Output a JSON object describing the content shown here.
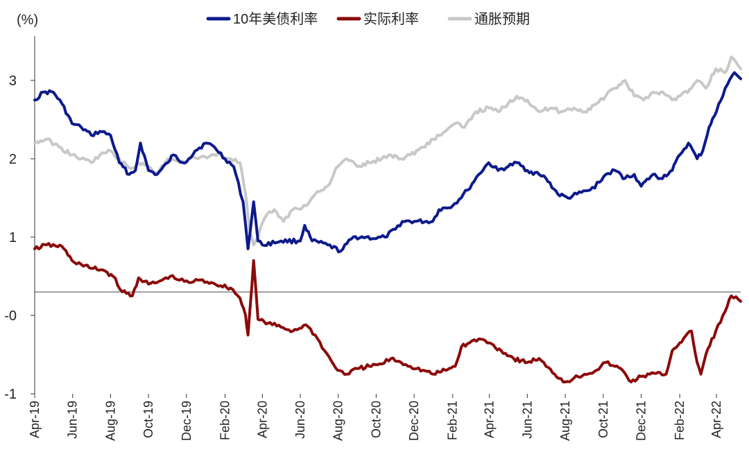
{
  "chart_data": {
    "type": "line",
    "ylabel": "(%)",
    "ylim": [
      -1.0,
      3.5
    ],
    "grid": false,
    "legend_position": "top",
    "x_start": "2019-04-01",
    "x_end": "2022-05-10",
    "x_ticks": [
      {
        "label": "Apr-19",
        "date": "2019-04-01"
      },
      {
        "label": "Jun-19",
        "date": "2019-06-01"
      },
      {
        "label": "Aug-19",
        "date": "2019-08-01"
      },
      {
        "label": "Oct-19",
        "date": "2019-10-01"
      },
      {
        "label": "Dec-19",
        "date": "2019-12-01"
      },
      {
        "label": "Feb-20",
        "date": "2020-02-01"
      },
      {
        "label": "Apr-20",
        "date": "2020-04-01"
      },
      {
        "label": "Jun-20",
        "date": "2020-06-01"
      },
      {
        "label": "Aug-20",
        "date": "2020-08-01"
      },
      {
        "label": "Oct-20",
        "date": "2020-10-01"
      },
      {
        "label": "Dec-20",
        "date": "2020-12-01"
      },
      {
        "label": "Feb-21",
        "date": "2021-02-01"
      },
      {
        "label": "Apr-21",
        "date": "2021-04-01"
      },
      {
        "label": "Jun-21",
        "date": "2021-06-01"
      },
      {
        "label": "Aug-21",
        "date": "2021-08-01"
      },
      {
        "label": "Oct-21",
        "date": "2021-10-01"
      },
      {
        "label": "Dec-21",
        "date": "2021-12-01"
      },
      {
        "label": "Feb-22",
        "date": "2022-02-01"
      },
      {
        "label": "Apr-22",
        "date": "2022-04-01"
      }
    ],
    "y_ticks": [
      {
        "label": "3",
        "value": 3,
        "color": "#222222"
      },
      {
        "label": "2",
        "value": 2,
        "color": "#222222"
      },
      {
        "label": "1",
        "value": 1,
        "color": "#222222"
      },
      {
        "label": "-0",
        "value": 0,
        "color": "#e02020"
      },
      {
        "label": "-1",
        "value": -1,
        "color": "#222222"
      }
    ],
    "zero_line_value": 0.3,
    "series": [
      {
        "name": "10年美债利率",
        "color": "#0d1a8c",
        "points": [
          [
            "2019-04-01",
            2.75
          ],
          [
            "2019-04-15",
            2.85
          ],
          [
            "2019-05-01",
            2.85
          ],
          [
            "2019-05-15",
            2.7
          ],
          [
            "2019-05-31",
            2.45
          ],
          [
            "2019-06-15",
            2.4
          ],
          [
            "2019-07-01",
            2.3
          ],
          [
            "2019-07-15",
            2.35
          ],
          [
            "2019-08-01",
            2.3
          ],
          [
            "2019-08-15",
            1.95
          ],
          [
            "2019-08-31",
            1.8
          ],
          [
            "2019-09-10",
            1.85
          ],
          [
            "2019-09-18",
            2.2
          ],
          [
            "2019-10-01",
            1.85
          ],
          [
            "2019-10-15",
            1.8
          ],
          [
            "2019-11-01",
            1.95
          ],
          [
            "2019-11-10",
            2.05
          ],
          [
            "2019-11-25",
            1.95
          ],
          [
            "2019-12-05",
            2.0
          ],
          [
            "2019-12-15",
            2.1
          ],
          [
            "2020-01-01",
            2.2
          ],
          [
            "2020-01-15",
            2.15
          ],
          [
            "2020-02-01",
            2.0
          ],
          [
            "2020-02-15",
            1.9
          ],
          [
            "2020-03-01",
            1.45
          ],
          [
            "2020-03-09",
            0.85
          ],
          [
            "2020-03-18",
            1.45
          ],
          [
            "2020-03-25",
            0.95
          ],
          [
            "2020-04-01",
            0.9
          ],
          [
            "2020-05-01",
            0.95
          ],
          [
            "2020-06-01",
            0.95
          ],
          [
            "2020-06-08",
            1.15
          ],
          [
            "2020-06-20",
            0.95
          ],
          [
            "2020-07-15",
            0.9
          ],
          [
            "2020-08-05",
            0.82
          ],
          [
            "2020-08-25",
            1.0
          ],
          [
            "2020-09-15",
            1.0
          ],
          [
            "2020-10-01",
            0.98
          ],
          [
            "2020-10-15",
            1.0
          ],
          [
            "2020-11-01",
            1.1
          ],
          [
            "2020-11-12",
            1.2
          ],
          [
            "2020-12-01",
            1.2
          ],
          [
            "2020-12-31",
            1.2
          ],
          [
            "2021-01-10",
            1.35
          ],
          [
            "2021-02-01",
            1.4
          ],
          [
            "2021-02-25",
            1.6
          ],
          [
            "2021-03-15",
            1.8
          ],
          [
            "2021-03-31",
            1.95
          ],
          [
            "2021-04-15",
            1.85
          ],
          [
            "2021-05-01",
            1.9
          ],
          [
            "2021-05-15",
            1.95
          ],
          [
            "2021-06-01",
            1.85
          ],
          [
            "2021-06-20",
            1.8
          ],
          [
            "2021-07-01",
            1.75
          ],
          [
            "2021-07-20",
            1.55
          ],
          [
            "2021-08-05",
            1.5
          ],
          [
            "2021-08-20",
            1.55
          ],
          [
            "2021-09-10",
            1.6
          ],
          [
            "2021-09-25",
            1.7
          ],
          [
            "2021-10-05",
            1.8
          ],
          [
            "2021-10-20",
            1.85
          ],
          [
            "2021-11-05",
            1.75
          ],
          [
            "2021-11-20",
            1.8
          ],
          [
            "2021-12-01",
            1.65
          ],
          [
            "2021-12-20",
            1.8
          ],
          [
            "2022-01-01",
            1.75
          ],
          [
            "2022-01-20",
            1.85
          ],
          [
            "2022-02-01",
            2.05
          ],
          [
            "2022-02-15",
            2.2
          ],
          [
            "2022-03-01",
            2.0
          ],
          [
            "2022-03-10",
            2.1
          ],
          [
            "2022-03-20",
            2.4
          ],
          [
            "2022-04-01",
            2.6
          ],
          [
            "2022-04-15",
            2.9
          ],
          [
            "2022-04-30",
            3.1
          ],
          [
            "2022-05-10",
            3.02
          ]
        ]
      },
      {
        "name": "实际利率",
        "color": "#8b0a0a",
        "points": [
          [
            "2019-04-01",
            0.85
          ],
          [
            "2019-04-20",
            0.9
          ],
          [
            "2019-05-15",
            0.88
          ],
          [
            "2019-05-31",
            0.7
          ],
          [
            "2019-06-15",
            0.65
          ],
          [
            "2019-07-01",
            0.6
          ],
          [
            "2019-07-20",
            0.58
          ],
          [
            "2019-08-05",
            0.5
          ],
          [
            "2019-08-20",
            0.3
          ],
          [
            "2019-09-05",
            0.25
          ],
          [
            "2019-09-15",
            0.48
          ],
          [
            "2019-10-01",
            0.4
          ],
          [
            "2019-10-15",
            0.42
          ],
          [
            "2019-11-05",
            0.5
          ],
          [
            "2019-11-20",
            0.45
          ],
          [
            "2019-12-05",
            0.42
          ],
          [
            "2019-12-20",
            0.45
          ],
          [
            "2020-01-10",
            0.42
          ],
          [
            "2020-01-25",
            0.38
          ],
          [
            "2020-02-10",
            0.35
          ],
          [
            "2020-02-25",
            0.22
          ],
          [
            "2020-03-05",
            0.0
          ],
          [
            "2020-03-09",
            -0.25
          ],
          [
            "2020-03-18",
            0.7
          ],
          [
            "2020-03-25",
            -0.05
          ],
          [
            "2020-04-10",
            -0.1
          ],
          [
            "2020-05-01",
            -0.15
          ],
          [
            "2020-05-20",
            -0.2
          ],
          [
            "2020-06-10",
            -0.12
          ],
          [
            "2020-06-25",
            -0.25
          ],
          [
            "2020-07-10",
            -0.45
          ],
          [
            "2020-07-31",
            -0.7
          ],
          [
            "2020-08-15",
            -0.75
          ],
          [
            "2020-09-01",
            -0.68
          ],
          [
            "2020-09-20",
            -0.65
          ],
          [
            "2020-10-10",
            -0.62
          ],
          [
            "2020-10-25",
            -0.55
          ],
          [
            "2020-11-10",
            -0.6
          ],
          [
            "2020-11-25",
            -0.65
          ],
          [
            "2020-12-15",
            -0.7
          ],
          [
            "2021-01-01",
            -0.75
          ],
          [
            "2021-01-20",
            -0.7
          ],
          [
            "2021-02-05",
            -0.65
          ],
          [
            "2021-02-15",
            -0.4
          ],
          [
            "2021-02-28",
            -0.35
          ],
          [
            "2021-03-15",
            -0.3
          ],
          [
            "2021-04-01",
            -0.35
          ],
          [
            "2021-04-20",
            -0.45
          ],
          [
            "2021-05-10",
            -0.55
          ],
          [
            "2021-06-01",
            -0.6
          ],
          [
            "2021-06-20",
            -0.55
          ],
          [
            "2021-07-01",
            -0.65
          ],
          [
            "2021-07-15",
            -0.75
          ],
          [
            "2021-08-01",
            -0.85
          ],
          [
            "2021-08-15",
            -0.8
          ],
          [
            "2021-09-01",
            -0.75
          ],
          [
            "2021-09-20",
            -0.7
          ],
          [
            "2021-10-05",
            -0.6
          ],
          [
            "2021-10-20",
            -0.65
          ],
          [
            "2021-11-01",
            -0.7
          ],
          [
            "2021-11-15",
            -0.85
          ],
          [
            "2021-12-01",
            -0.78
          ],
          [
            "2021-12-15",
            -0.75
          ],
          [
            "2022-01-10",
            -0.75
          ],
          [
            "2022-01-20",
            -0.45
          ],
          [
            "2022-02-01",
            -0.35
          ],
          [
            "2022-02-20",
            -0.2
          ],
          [
            "2022-03-01",
            -0.6
          ],
          [
            "2022-03-07",
            -0.75
          ],
          [
            "2022-03-15",
            -0.5
          ],
          [
            "2022-03-31",
            -0.2
          ],
          [
            "2022-04-15",
            0.05
          ],
          [
            "2022-04-25",
            0.25
          ],
          [
            "2022-05-10",
            0.18
          ]
        ]
      },
      {
        "name": "通胀预期",
        "color": "#c8c8c8",
        "points": [
          [
            "2019-04-01",
            2.2
          ],
          [
            "2019-04-20",
            2.25
          ],
          [
            "2019-05-10",
            2.15
          ],
          [
            "2019-05-31",
            2.05
          ],
          [
            "2019-06-15",
            2.0
          ],
          [
            "2019-07-01",
            1.95
          ],
          [
            "2019-07-15",
            2.05
          ],
          [
            "2019-08-01",
            2.1
          ],
          [
            "2019-08-20",
            1.95
          ],
          [
            "2019-09-05",
            1.88
          ],
          [
            "2019-09-15",
            1.95
          ],
          [
            "2019-10-01",
            1.9
          ],
          [
            "2019-10-15",
            1.82
          ],
          [
            "2019-11-01",
            2.0
          ],
          [
            "2019-11-20",
            1.95
          ],
          [
            "2019-12-05",
            2.0
          ],
          [
            "2019-12-20",
            2.0
          ],
          [
            "2020-01-10",
            2.05
          ],
          [
            "2020-01-25",
            2.05
          ],
          [
            "2020-02-10",
            2.0
          ],
          [
            "2020-02-25",
            1.95
          ],
          [
            "2020-03-05",
            1.55
          ],
          [
            "2020-03-12",
            1.05
          ],
          [
            "2020-03-18",
            0.9
          ],
          [
            "2020-03-25",
            1.0
          ],
          [
            "2020-04-05",
            1.25
          ],
          [
            "2020-04-20",
            1.35
          ],
          [
            "2020-05-05",
            1.2
          ],
          [
            "2020-05-20",
            1.35
          ],
          [
            "2020-06-10",
            1.4
          ],
          [
            "2020-06-25",
            1.55
          ],
          [
            "2020-07-15",
            1.65
          ],
          [
            "2020-07-31",
            1.9
          ],
          [
            "2020-08-15",
            2.0
          ],
          [
            "2020-09-01",
            1.9
          ],
          [
            "2020-09-20",
            1.95
          ],
          [
            "2020-10-10",
            2.0
          ],
          [
            "2020-10-25",
            2.05
          ],
          [
            "2020-11-10",
            2.0
          ],
          [
            "2020-11-25",
            2.05
          ],
          [
            "2020-12-15",
            2.15
          ],
          [
            "2021-01-01",
            2.25
          ],
          [
            "2021-01-20",
            2.35
          ],
          [
            "2021-02-05",
            2.45
          ],
          [
            "2021-02-20",
            2.4
          ],
          [
            "2021-03-10",
            2.6
          ],
          [
            "2021-03-31",
            2.65
          ],
          [
            "2021-04-15",
            2.6
          ],
          [
            "2021-05-01",
            2.7
          ],
          [
            "2021-05-15",
            2.8
          ],
          [
            "2021-06-01",
            2.75
          ],
          [
            "2021-06-20",
            2.6
          ],
          [
            "2021-07-10",
            2.65
          ],
          [
            "2021-07-25",
            2.6
          ],
          [
            "2021-08-15",
            2.65
          ],
          [
            "2021-09-01",
            2.6
          ],
          [
            "2021-09-20",
            2.7
          ],
          [
            "2021-10-05",
            2.8
          ],
          [
            "2021-10-20",
            2.9
          ],
          [
            "2021-11-05",
            3.0
          ],
          [
            "2021-11-20",
            2.8
          ],
          [
            "2021-12-05",
            2.75
          ],
          [
            "2021-12-20",
            2.85
          ],
          [
            "2022-01-05",
            2.85
          ],
          [
            "2022-01-20",
            2.75
          ],
          [
            "2022-02-01",
            2.8
          ],
          [
            "2022-02-20",
            2.9
          ],
          [
            "2022-03-01",
            3.0
          ],
          [
            "2022-03-15",
            2.9
          ],
          [
            "2022-03-31",
            3.15
          ],
          [
            "2022-04-15",
            3.1
          ],
          [
            "2022-04-25",
            3.3
          ],
          [
            "2022-05-10",
            3.15
          ]
        ]
      }
    ]
  }
}
